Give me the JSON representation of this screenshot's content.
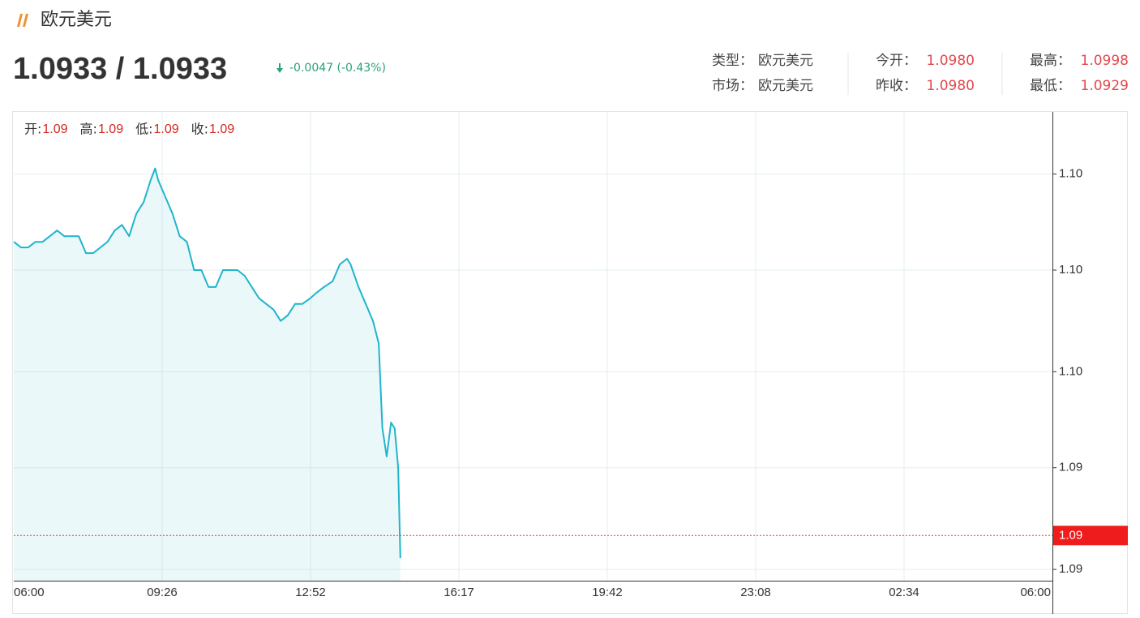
{
  "header": {
    "title": "欧元美元",
    "price": "1.0933 / 1.0933",
    "change": "-0.0047 (-0.43%)",
    "info": [
      [
        {
          "label": "类型：",
          "value": "欧元美元"
        },
        {
          "label": "今开：",
          "value": "1.0980"
        },
        {
          "label": "最高：",
          "value": "1.0998"
        }
      ],
      [
        {
          "label": "市场：",
          "value": "欧元美元"
        },
        {
          "label": "昨收：",
          "value": "1.0980"
        },
        {
          "label": "最低：",
          "value": "1.0929"
        }
      ]
    ]
  },
  "chart_data": {
    "type": "area",
    "ohlc": [
      {
        "label": "开:",
        "value": "1.09"
      },
      {
        "label": "高:",
        "value": "1.09"
      },
      {
        "label": "低:",
        "value": "1.09"
      },
      {
        "label": "收:",
        "value": "1.09"
      }
    ],
    "xticks": [
      "06:00",
      "09:26",
      "12:52",
      "16:17",
      "19:42",
      "23:08",
      "02:34",
      "06:00"
    ],
    "ylim": [
      1.0925,
      1.1008
    ],
    "yticks": [
      {
        "value": 1.0997,
        "label": "1.10"
      },
      {
        "value": 1.098,
        "label": "1.10"
      },
      {
        "value": 1.0962,
        "label": "1.10"
      },
      {
        "value": 1.0945,
        "label": "1.09"
      },
      {
        "value": 1.0927,
        "label": "1.09"
      }
    ],
    "last": {
      "value": 1.0933,
      "label": "1.09"
    },
    "grid": true,
    "series": [
      {
        "color": "#1fb5cc",
        "x": [
          "06:00",
          "06:10",
          "06:20",
          "06:30",
          "06:40",
          "06:50",
          "07:00",
          "07:10",
          "07:20",
          "07:30",
          "07:40",
          "07:50",
          "08:00",
          "08:10",
          "08:20",
          "08:30",
          "08:40",
          "08:50",
          "09:00",
          "09:10",
          "09:16",
          "09:20",
          "09:30",
          "09:40",
          "09:50",
          "10:00",
          "10:10",
          "10:20",
          "10:30",
          "10:40",
          "10:50",
          "11:00",
          "11:10",
          "11:20",
          "11:30",
          "11:40",
          "11:50",
          "12:00",
          "12:10",
          "12:20",
          "12:30",
          "12:40",
          "12:51",
          "13:00",
          "13:10",
          "13:22",
          "13:32",
          "13:42",
          "13:47",
          "13:58",
          "14:08",
          "14:18",
          "14:26",
          "14:31",
          "14:37",
          "14:43",
          "14:48",
          "14:53",
          "14:56"
        ],
        "values": [
          1.0985,
          1.0984,
          1.0984,
          1.0985,
          1.0985,
          1.0986,
          1.0987,
          1.0986,
          1.0986,
          1.0986,
          1.0983,
          1.0983,
          1.0984,
          1.0985,
          1.0987,
          1.0988,
          1.0986,
          1.099,
          1.0992,
          1.0996,
          1.0998,
          1.0996,
          1.0993,
          1.099,
          1.0986,
          1.0985,
          1.098,
          1.098,
          1.0977,
          1.0977,
          1.098,
          1.098,
          1.098,
          1.0979,
          1.0977,
          1.0975,
          1.0974,
          1.0973,
          1.0971,
          1.0972,
          1.0974,
          1.0974,
          1.0975,
          1.0976,
          1.0977,
          1.0978,
          1.0981,
          1.0982,
          1.0981,
          1.0977,
          1.0974,
          1.0971,
          1.0967,
          1.0952,
          1.0947,
          1.0953,
          1.0952,
          1.0945,
          1.0929
        ]
      }
    ]
  }
}
